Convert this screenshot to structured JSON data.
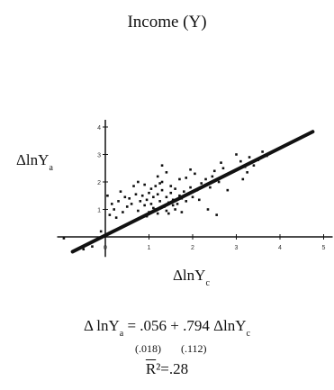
{
  "chart_data": {
    "type": "scatter",
    "title": "Income (Y)",
    "ylabel": "ΔlnY",
    "ylabel_sub": "a",
    "xlabel": "ΔlnY",
    "xlabel_sub": "c",
    "xlim": [
      -1,
      5
    ],
    "ylim": [
      -0.6,
      4
    ],
    "x_ticks": [
      "0",
      "1",
      "2",
      "3",
      "4",
      "5"
    ],
    "y_ticks": [
      "1",
      "2",
      "3",
      "4"
    ],
    "fit_line": {
      "intercept": 0.056,
      "slope": 0.794
    },
    "equation": {
      "lhs": "Δ lnY",
      "lhs_sub": "a",
      "rhs": " = .056 + .794 ΔlnY",
      "rhs_sub": "c",
      "se_intercept": "(.018)",
      "se_slope": "(.112)",
      "r2_symbol": "R",
      "r2_text": "²=.28"
    },
    "points": [
      [
        -0.95,
        -0.05
      ],
      [
        -0.5,
        -0.45
      ],
      [
        -0.3,
        -0.35
      ],
      [
        -0.1,
        0.2
      ],
      [
        0.1,
        0.8
      ],
      [
        0.15,
        1.2
      ],
      [
        0.2,
        1.0
      ],
      [
        0.05,
        1.5
      ],
      [
        0.3,
        1.3
      ],
      [
        0.4,
        0.9
      ],
      [
        0.5,
        1.1
      ],
      [
        0.55,
        1.4
      ],
      [
        0.6,
        1.2
      ],
      [
        0.7,
        1.55
      ],
      [
        0.75,
        0.95
      ],
      [
        0.8,
        1.3
      ],
      [
        0.85,
        1.5
      ],
      [
        0.9,
        1.15
      ],
      [
        0.95,
        1.35
      ],
      [
        1.0,
        1.6
      ],
      [
        1.05,
        1.2
      ],
      [
        1.1,
        1.45
      ],
      [
        1.15,
        1.0
      ],
      [
        1.2,
        1.55
      ],
      [
        1.25,
        1.3
      ],
      [
        1.3,
        1.7
      ],
      [
        1.35,
        1.1
      ],
      [
        1.4,
        1.45
      ],
      [
        1.45,
        1.25
      ],
      [
        1.5,
        1.6
      ],
      [
        1.55,
        1.35
      ],
      [
        1.6,
        1.75
      ],
      [
        1.65,
        1.2
      ],
      [
        1.7,
        1.5
      ],
      [
        1.75,
        1.4
      ],
      [
        1.8,
        1.65
      ],
      [
        1.85,
        1.3
      ],
      [
        1.9,
        1.55
      ],
      [
        1.95,
        1.8
      ],
      [
        2.0,
        1.45
      ],
      [
        1.05,
        1.75
      ],
      [
        1.15,
        1.85
      ],
      [
        1.25,
        1.95
      ],
      [
        1.0,
        0.9
      ],
      [
        1.2,
        0.85
      ],
      [
        1.4,
        0.95
      ],
      [
        1.6,
        1.0
      ],
      [
        1.3,
        2.0
      ],
      [
        0.9,
        1.9
      ],
      [
        1.5,
        1.85
      ],
      [
        1.7,
        2.1
      ],
      [
        1.4,
        2.35
      ],
      [
        1.3,
        2.6
      ],
      [
        1.2,
        2.2
      ],
      [
        2.1,
        1.7
      ],
      [
        2.2,
        1.95
      ],
      [
        2.3,
        2.1
      ],
      [
        2.4,
        1.8
      ],
      [
        2.5,
        2.4
      ],
      [
        2.6,
        2.0
      ],
      [
        2.7,
        2.5
      ],
      [
        2.45,
        2.2
      ],
      [
        2.8,
        1.7
      ],
      [
        2.15,
        1.35
      ],
      [
        2.35,
        1.0
      ],
      [
        2.55,
        0.8
      ],
      [
        3.0,
        3.0
      ],
      [
        3.1,
        2.75
      ],
      [
        3.2,
        2.55
      ],
      [
        3.3,
        2.9
      ],
      [
        3.4,
        2.6
      ],
      [
        3.5,
        2.8
      ],
      [
        3.6,
        3.1
      ],
      [
        3.7,
        2.95
      ],
      [
        3.15,
        2.1
      ],
      [
        1.85,
        2.15
      ],
      [
        0.65,
        1.85
      ],
      [
        0.45,
        1.45
      ],
      [
        1.1,
        1.05
      ],
      [
        1.55,
        1.15
      ],
      [
        0.35,
        1.65
      ],
      [
        0.25,
        0.7
      ],
      [
        1.75,
        0.9
      ],
      [
        2.05,
        2.3
      ],
      [
        0.75,
        2.0
      ],
      [
        1.95,
        2.45
      ],
      [
        2.65,
        2.7
      ],
      [
        3.25,
        2.35
      ],
      [
        0.95,
        0.75
      ],
      [
        1.45,
        0.85
      ]
    ]
  }
}
